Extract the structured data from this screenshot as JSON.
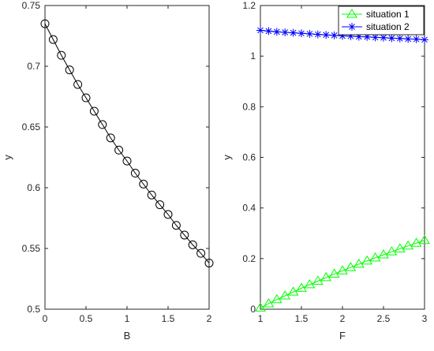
{
  "chart_data": [
    {
      "type": "line",
      "xlabel": "B",
      "ylabel": "y",
      "xlim": [
        0,
        2
      ],
      "ylim": [
        0.5,
        0.75
      ],
      "xticks": [
        "0",
        "0.5",
        "1",
        "1.5",
        "2"
      ],
      "yticks": [
        "0.5",
        "0.55",
        "0.6",
        "0.65",
        "0.7",
        "0.75"
      ],
      "grid": false,
      "legend": null,
      "series": [
        {
          "color": "#000000",
          "marker": "circle",
          "x": [
            0,
            0.1,
            0.2,
            0.3,
            0.4,
            0.5,
            0.6,
            0.7,
            0.8,
            0.9,
            1.0,
            1.1,
            1.2,
            1.3,
            1.4,
            1.5,
            1.6,
            1.7,
            1.8,
            1.9,
            2.0
          ],
          "y": [
            0.735,
            0.722,
            0.709,
            0.697,
            0.685,
            0.674,
            0.663,
            0.652,
            0.641,
            0.631,
            0.622,
            0.612,
            0.603,
            0.594,
            0.586,
            0.578,
            0.569,
            0.561,
            0.553,
            0.546,
            0.538
          ]
        }
      ]
    },
    {
      "type": "line",
      "xlabel": "F",
      "ylabel": "y",
      "xlim": [
        1,
        3
      ],
      "ylim": [
        0,
        1.2
      ],
      "xticks": [
        "1",
        "1.5",
        "2",
        "2.5",
        "3"
      ],
      "yticks": [
        "0",
        "0.2",
        "0.4",
        "0.6",
        "0.8",
        "1",
        "1.2"
      ],
      "grid": false,
      "legend": "top-right",
      "series": [
        {
          "name": "situation 1",
          "color": "#00ff00",
          "marker": "triangle",
          "x": [
            1.0,
            1.1,
            1.2,
            1.3,
            1.4,
            1.5,
            1.6,
            1.7,
            1.8,
            1.9,
            2.0,
            2.1,
            2.2,
            2.3,
            2.4,
            2.5,
            2.6,
            2.7,
            2.8,
            2.9,
            3.0
          ],
          "y": [
            0.005,
            0.022,
            0.038,
            0.053,
            0.068,
            0.083,
            0.097,
            0.111,
            0.125,
            0.139,
            0.152,
            0.165,
            0.178,
            0.191,
            0.203,
            0.215,
            0.227,
            0.239,
            0.25,
            0.261,
            0.272
          ]
        },
        {
          "name": "situation 2",
          "color": "#0000ff",
          "marker": "asterisk",
          "x": [
            1.0,
            1.1,
            1.2,
            1.3,
            1.4,
            1.5,
            1.6,
            1.7,
            1.8,
            1.9,
            2.0,
            2.1,
            2.2,
            2.3,
            2.4,
            2.5,
            2.6,
            2.7,
            2.8,
            2.9,
            3.0
          ],
          "y": [
            1.102,
            1.099,
            1.096,
            1.094,
            1.092,
            1.09,
            1.088,
            1.086,
            1.084,
            1.082,
            1.08,
            1.079,
            1.077,
            1.076,
            1.074,
            1.073,
            1.071,
            1.07,
            1.068,
            1.067,
            1.065
          ]
        }
      ]
    }
  ]
}
